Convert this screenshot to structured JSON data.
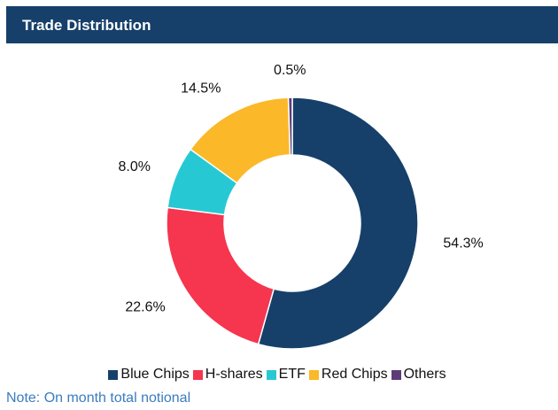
{
  "chart_data": {
    "type": "donut",
    "title": "Trade Distribution",
    "categories": [
      "Blue Chips",
      "H-shares",
      "ETF",
      "Red Chips",
      "Others"
    ],
    "values": [
      54.3,
      22.6,
      8.0,
      14.5,
      0.5
    ],
    "value_labels": [
      "54.3%",
      "22.6%",
      "8.0%",
      "14.5%",
      "0.5%"
    ],
    "colors": [
      "#16406a",
      "#f5364e",
      "#26c9d3",
      "#fbb829",
      "#5c3c78"
    ],
    "legend": "bottom",
    "note": "Note: On month total notional"
  }
}
